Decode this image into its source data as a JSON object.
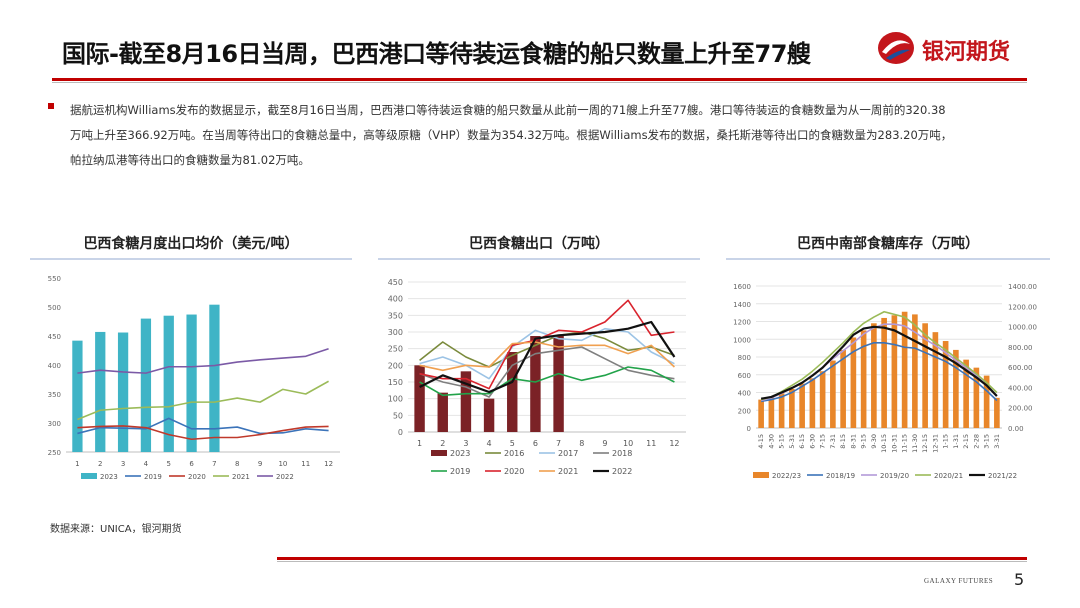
{
  "header": {
    "title": "国际-截至8月16日当周，巴西港口等待装运食糖的船只数量上升至77艘",
    "logo_text": "银河期货"
  },
  "bullet": {
    "line1": "据航运机构Williams发布的数据显示，截至8月16日当周，巴西港口等待装运食糖的船只数量从此前一周的71艘上升至77艘。港口等待装运的食糖数量为从一周前的320.38",
    "line2": "万吨上升至366.92万吨。在当周等待出口的食糖总量中，高等级原糖（VHP）数量为354.32万吨。根据Williams发布的数据，桑托斯港等待出口的食糖数量为283.20万吨，",
    "line3": "帕拉纳瓜港等待出口的食糖数量为81.02万吨。"
  },
  "footer": {
    "source": "数据来源：UNICA，银河期货",
    "brand": "GALAXY FUTURES",
    "page": "5"
  },
  "chart_data": [
    {
      "type": "bar",
      "title": "巴西食糖月度出口均价（美元/吨）",
      "categories": [
        "1",
        "2",
        "3",
        "4",
        "5",
        "6",
        "7",
        "8",
        "9",
        "10",
        "11",
        "12"
      ],
      "ylim": [
        250,
        550
      ],
      "yticks": [
        250,
        300,
        350,
        400,
        450,
        500,
        550
      ],
      "bar_series": {
        "name": "2023",
        "color": "#3fb4c6",
        "values": [
          442,
          457,
          456,
          480,
          485,
          487,
          504,
          null,
          null,
          null,
          null,
          null
        ]
      },
      "series": [
        {
          "name": "2019",
          "color": "#3b73b9",
          "values": [
            282,
            292,
            291,
            290,
            308,
            290,
            290,
            293,
            282,
            283,
            290,
            287
          ]
        },
        {
          "name": "2020",
          "color": "#c0392b",
          "values": [
            292,
            294,
            295,
            292,
            280,
            272,
            275,
            275,
            280,
            287,
            293,
            294
          ]
        },
        {
          "name": "2021",
          "color": "#9bbb59",
          "values": [
            306,
            322,
            325,
            327,
            328,
            336,
            336,
            343,
            336,
            358,
            350,
            372
          ]
        },
        {
          "name": "2022",
          "color": "#7b5aa6",
          "values": [
            386,
            391,
            388,
            386,
            397,
            397,
            399,
            405,
            409,
            412,
            415,
            428
          ]
        }
      ]
    },
    {
      "type": "bar",
      "title": "巴西食糖出口（万吨）",
      "categories": [
        "1",
        "2",
        "3",
        "4",
        "5",
        "6",
        "7",
        "8",
        "9",
        "10",
        "11",
        "12"
      ],
      "ylim": [
        0,
        450
      ],
      "yticks": [
        0,
        50,
        100,
        150,
        200,
        250,
        300,
        350,
        400,
        450
      ],
      "bar_series": {
        "name": "2023",
        "color": "#7b2226",
        "values": [
          200,
          118,
          182,
          100,
          240,
          288,
          290,
          null,
          null,
          null,
          null,
          null
        ]
      },
      "series": [
        {
          "name": "2016",
          "color": "#7a8a3c",
          "values": [
            215,
            270,
            225,
            195,
            230,
            260,
            290,
            300,
            280,
            245,
            255,
            230
          ]
        },
        {
          "name": "2017",
          "color": "#9cc3e5",
          "values": [
            205,
            225,
            200,
            160,
            255,
            305,
            280,
            275,
            310,
            300,
            240,
            205
          ]
        },
        {
          "name": "2018",
          "color": "#7f7f7f",
          "values": [
            175,
            150,
            135,
            105,
            200,
            235,
            245,
            255,
            220,
            185,
            170,
            160
          ]
        },
        {
          "name": "2019",
          "color": "#22a34a",
          "values": [
            150,
            110,
            115,
            115,
            160,
            150,
            175,
            155,
            170,
            195,
            185,
            150
          ]
        },
        {
          "name": "2020",
          "color": "#d9232d",
          "values": [
            175,
            160,
            160,
            130,
            260,
            275,
            305,
            300,
            330,
            395,
            290,
            300
          ]
        },
        {
          "name": "2021",
          "color": "#f0a050",
          "values": [
            200,
            185,
            200,
            195,
            265,
            270,
            255,
            260,
            260,
            235,
            260,
            195
          ]
        },
        {
          "name": "2022",
          "color": "#111111",
          "values": [
            135,
            170,
            145,
            120,
            150,
            280,
            290,
            295,
            300,
            310,
            330,
            225
          ]
        }
      ]
    },
    {
      "type": "bar",
      "title": "巴西中南部食糖库存（万吨）",
      "categories": [
        "4-15",
        "4-30",
        "5-15",
        "5-31",
        "6-15",
        "6-30",
        "7-15",
        "7-31",
        "8-15",
        "8-31",
        "9-15",
        "9-30",
        "10-15",
        "10-31",
        "11-15",
        "11-30",
        "12-15",
        "12-31",
        "1-15",
        "1-31",
        "2-15",
        "2-28",
        "3-15",
        "3-31"
      ],
      "ylim": [
        0,
        1600
      ],
      "yticks": [
        0,
        200,
        400,
        600,
        800,
        1000,
        1200,
        1400,
        1600
      ],
      "ylim_right": [
        0,
        1400
      ],
      "yticks_right": [
        "0.00",
        "200.00",
        "400.00",
        "600.00",
        "800.00",
        "1000.00",
        "1200.00",
        "1400.00"
      ],
      "bar_series": {
        "name": "2022/23",
        "color": "#e8862a",
        "values": [
          320,
          350,
          390,
          440,
          500,
          560,
          640,
          760,
          880,
          1020,
          1100,
          1180,
          1240,
          1270,
          1310,
          1280,
          1180,
          1080,
          980,
          880,
          770,
          680,
          590,
          340
        ]
      },
      "series": [
        {
          "name": "2018/19",
          "color": "#3b73b9",
          "values": [
            300,
            320,
            350,
            400,
            470,
            540,
            620,
            700,
            780,
            860,
            920,
            960,
            960,
            940,
            910,
            900,
            850,
            800,
            750,
            680,
            600,
            520,
            420,
            310
          ]
        },
        {
          "name": "2019/20",
          "color": "#b39ad9",
          "values": [
            310,
            340,
            390,
            450,
            510,
            590,
            680,
            780,
            870,
            960,
            1060,
            1130,
            1170,
            1170,
            1150,
            1080,
            1000,
            930,
            850,
            760,
            680,
            590,
            480,
            360
          ]
        },
        {
          "name": "2020/21",
          "color": "#9bbb59",
          "values": [
            320,
            350,
            410,
            480,
            550,
            640,
            740,
            850,
            960,
            1080,
            1180,
            1250,
            1310,
            1280,
            1250,
            1160,
            1050,
            960,
            880,
            790,
            700,
            610,
            510,
            400
          ]
        },
        {
          "name": "2021/22",
          "color": "#111111",
          "values": [
            330,
            350,
            400,
            450,
            510,
            590,
            680,
            800,
            920,
            1050,
            1120,
            1140,
            1130,
            1100,
            1040,
            980,
            920,
            860,
            800,
            730,
            650,
            570,
            480,
            360
          ]
        }
      ]
    }
  ]
}
